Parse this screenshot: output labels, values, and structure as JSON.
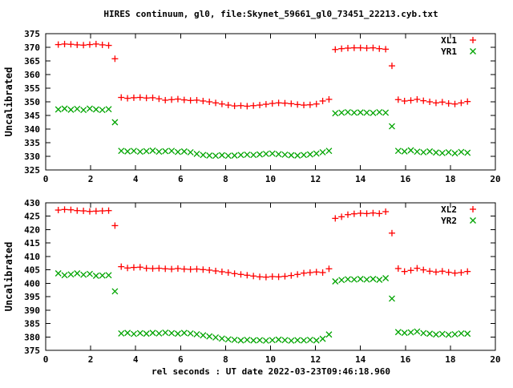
{
  "chart": {
    "title": "HIRES continuum, gl0, file:Skynet_59661_gl0_73451_22213.cyb.txt",
    "xlabel": "rel seconds : UT date 2022-03-23T09:46:18.960",
    "colors": {
      "red": "#ff0000",
      "green": "#00a400",
      "axis": "#000000"
    }
  },
  "chart_data": {
    "type": "scatter",
    "title": "HIRES continuum, gl0, file:Skynet_59661_gl0_73451_22213.cyb.txt",
    "xlabel": "rel seconds : UT date 2022-03-23T09:46:18.960",
    "xlim": [
      0,
      20
    ],
    "xticks": [
      0,
      2,
      4,
      6,
      8,
      10,
      12,
      14,
      16,
      18,
      20
    ],
    "grid": false,
    "x": [
      0.56,
      0.84,
      1.12,
      1.4,
      1.68,
      1.96,
      2.24,
      2.52,
      2.8,
      3.08,
      3.36,
      3.64,
      3.92,
      4.2,
      4.48,
      4.76,
      5.04,
      5.32,
      5.6,
      5.88,
      6.16,
      6.44,
      6.72,
      7.0,
      7.28,
      7.56,
      7.84,
      8.12,
      8.4,
      8.68,
      8.96,
      9.24,
      9.52,
      9.8,
      10.08,
      10.36,
      10.64,
      10.92,
      11.2,
      11.48,
      11.76,
      12.04,
      12.32,
      12.6,
      12.88,
      13.16,
      13.44,
      13.72,
      14.0,
      14.28,
      14.56,
      14.84,
      15.12,
      15.4,
      15.68,
      15.96,
      16.24,
      16.52,
      16.8,
      17.08,
      17.36,
      17.64,
      17.92,
      18.2,
      18.48,
      18.76
    ],
    "panels": [
      {
        "ylabel": "Uncalibrated",
        "ylim": [
          325,
          375
        ],
        "yticks": [
          325,
          330,
          335,
          340,
          345,
          350,
          355,
          360,
          365,
          370,
          375
        ],
        "legend_position": "top-right",
        "series": [
          {
            "name": "XL1",
            "marker": "plus",
            "color": "#ff0000",
            "y": [
              371.0,
              371.2,
              371.1,
              370.9,
              370.8,
              371.0,
              371.2,
              370.9,
              370.7,
              365.8,
              351.6,
              351.3,
              351.5,
              351.6,
              351.4,
              351.5,
              351.1,
              350.6,
              350.8,
              351.0,
              350.7,
              350.5,
              350.6,
              350.3,
              350.0,
              349.6,
              349.2,
              348.8,
              348.5,
              348.6,
              348.4,
              348.6,
              348.8,
              349.1,
              349.4,
              349.6,
              349.5,
              349.3,
              349.0,
              348.8,
              348.9,
              349.2,
              350.3,
              350.9,
              369.2,
              369.5,
              369.7,
              369.8,
              369.8,
              369.7,
              369.8,
              369.5,
              369.3,
              363.2,
              350.8,
              350.3,
              350.5,
              350.9,
              350.4,
              350.0,
              349.6,
              349.9,
              349.4,
              349.2,
              349.6,
              350.1
            ]
          },
          {
            "name": "YR1",
            "marker": "cross",
            "color": "#00a400",
            "y": [
              347.2,
              347.5,
              347.1,
              347.4,
              347.0,
              347.5,
              347.2,
              347.0,
              347.3,
              342.5,
              332.0,
              331.8,
              332.0,
              331.7,
              331.9,
              332.1,
              331.7,
              331.9,
              332.0,
              331.6,
              331.8,
              331.5,
              330.9,
              330.5,
              330.3,
              330.2,
              330.4,
              330.2,
              330.3,
              330.5,
              330.6,
              330.5,
              330.7,
              330.9,
              331.0,
              330.8,
              330.6,
              330.4,
              330.3,
              330.5,
              330.7,
              331.0,
              331.5,
              332.0,
              345.8,
              346.0,
              346.2,
              346.0,
              346.1,
              346.0,
              345.9,
              346.2,
              346.0,
              341.0,
              332.0,
              331.8,
              332.2,
              331.7,
              331.5,
              331.8,
              331.4,
              331.2,
              331.5,
              331.1,
              331.6,
              331.3
            ]
          }
        ]
      },
      {
        "ylabel": "Uncalibrated",
        "ylim": [
          375,
          430
        ],
        "yticks": [
          375,
          380,
          385,
          390,
          395,
          400,
          405,
          410,
          415,
          420,
          425,
          430
        ],
        "legend_position": "top-right",
        "series": [
          {
            "name": "XL2",
            "marker": "plus",
            "color": "#ff0000",
            "y": [
              427.3,
              427.5,
              427.4,
              427.1,
              427.0,
              426.8,
              426.9,
              427.0,
              427.1,
              421.5,
              406.2,
              405.7,
              405.9,
              406.0,
              405.6,
              405.5,
              405.6,
              405.4,
              405.3,
              405.5,
              405.3,
              405.2,
              405.3,
              405.1,
              404.9,
              404.6,
              404.3,
              404.0,
              403.6,
              403.3,
              403.0,
              402.7,
              402.4,
              402.3,
              402.5,
              402.4,
              402.6,
              402.9,
              403.3,
              403.8,
              404.0,
              404.2,
              404.0,
              405.4,
              424.2,
              424.8,
              425.6,
              425.9,
              426.1,
              426.0,
              426.2,
              426.0,
              426.7,
              418.7,
              405.5,
              404.4,
              404.8,
              405.6,
              405.0,
              404.5,
              404.2,
              404.5,
              404.1,
              403.8,
              404.0,
              404.4
            ]
          },
          {
            "name": "YR2",
            "marker": "cross",
            "color": "#00a400",
            "y": [
              403.7,
              403.0,
              403.3,
              403.7,
              403.2,
              403.5,
              402.8,
              402.9,
              403.0,
              397.0,
              381.3,
              381.5,
              381.1,
              381.4,
              381.2,
              381.5,
              381.3,
              381.6,
              381.4,
              381.2,
              381.5,
              381.3,
              381.0,
              380.6,
              380.2,
              379.8,
              379.4,
              379.1,
              378.9,
              378.7,
              378.9,
              378.7,
              378.8,
              378.6,
              378.8,
              379.0,
              378.8,
              378.6,
              378.8,
              378.7,
              378.9,
              378.7,
              379.3,
              380.9,
              400.7,
              401.2,
              401.5,
              401.4,
              401.6,
              401.4,
              401.6,
              401.3,
              401.9,
              394.3,
              381.8,
              381.5,
              381.7,
              382.0,
              381.4,
              381.2,
              380.9,
              381.1,
              380.8,
              381.0,
              381.3,
              381.2
            ]
          }
        ]
      }
    ]
  }
}
